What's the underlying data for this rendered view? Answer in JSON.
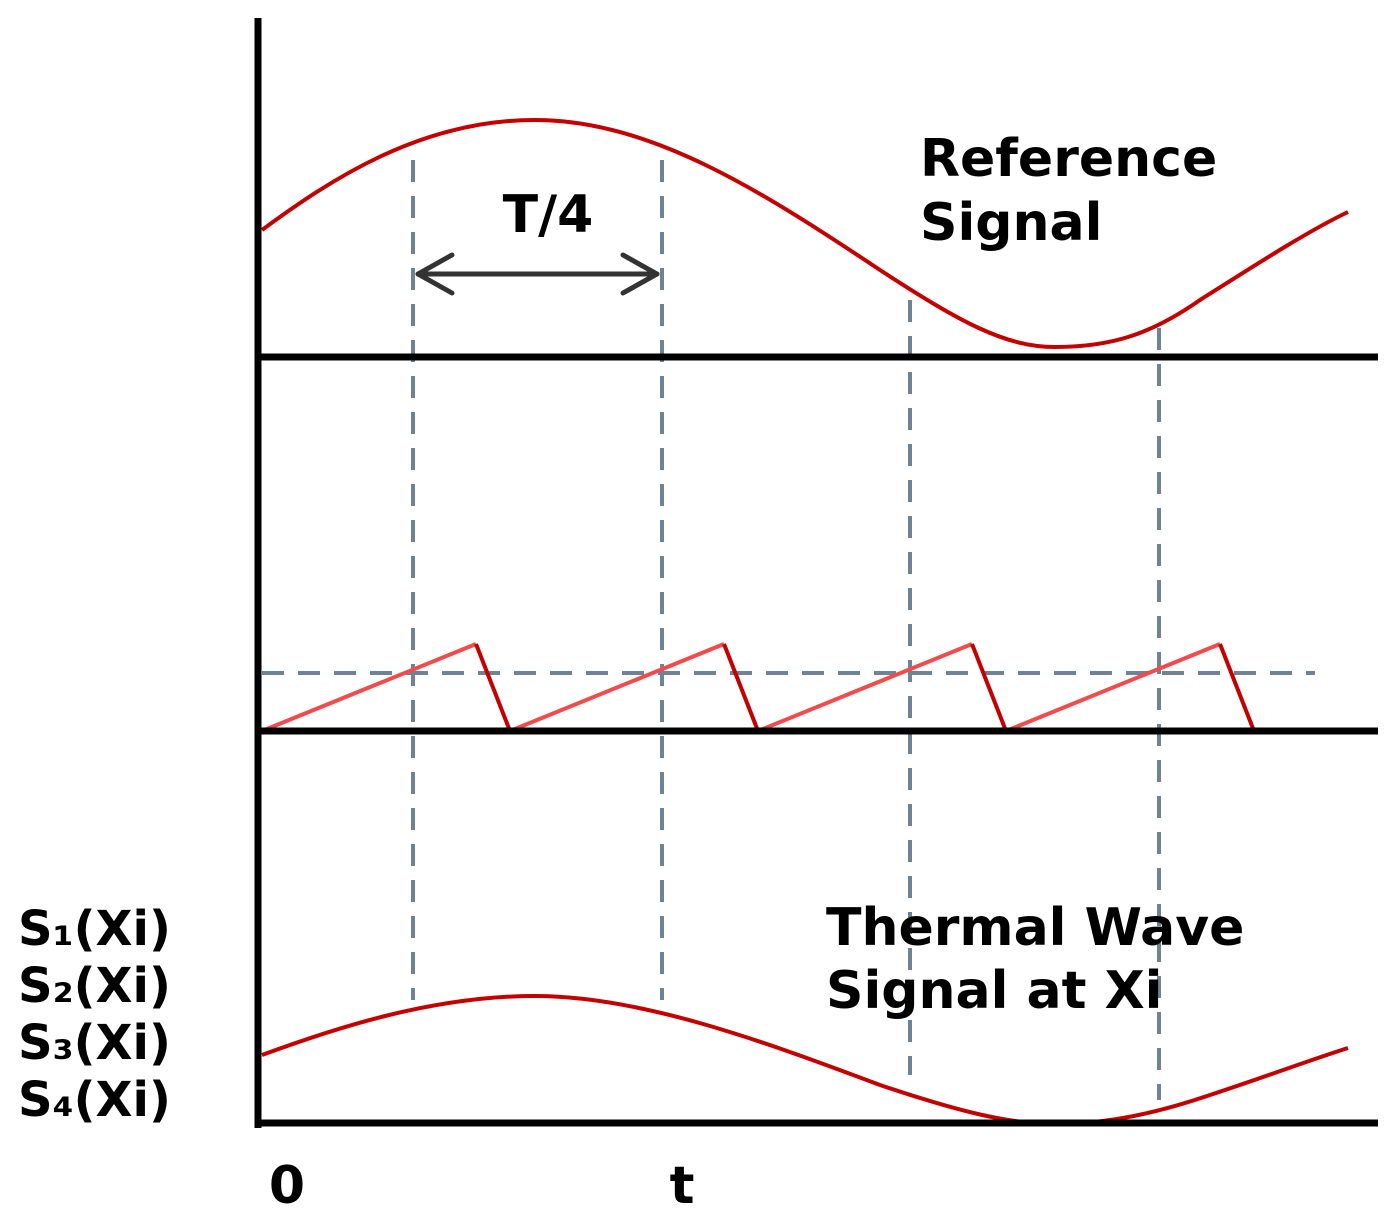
{
  "labels": {
    "reference_line1": "Reference",
    "reference_line2": "Signal",
    "period_quarter": "T/4",
    "thermal_line1": "Thermal Wave",
    "thermal_line2": "Signal at Xi",
    "origin": "0",
    "time": "t",
    "s1": "S₁(Xi)",
    "s2": "S₂(Xi)",
    "s3": "S₃(Xi)",
    "s4": "S₄(Xi)"
  },
  "colors": {
    "signal": "#c40000",
    "sawtooth_ramp": "#f24b4b",
    "guide": "#6f8397",
    "axis": "#000000",
    "arrow": "#333333"
  }
}
